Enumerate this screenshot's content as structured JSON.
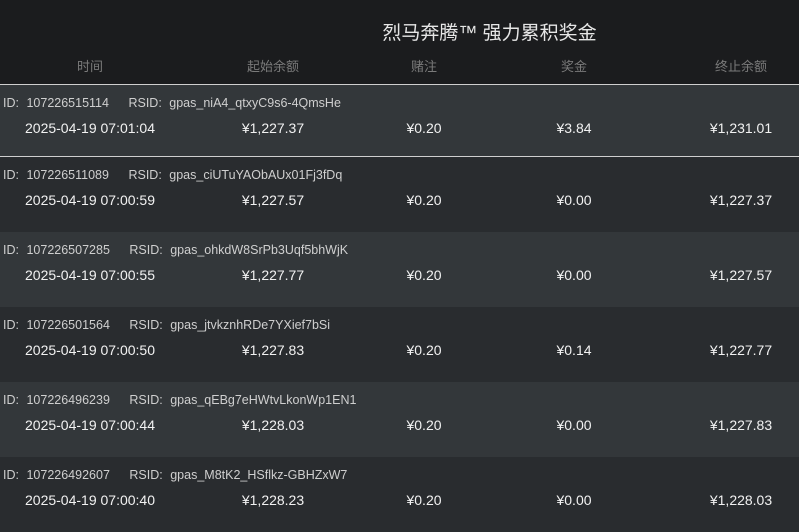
{
  "title": "烈马奔腾™ 强力累积奖金",
  "columns": [
    "时间",
    "起始余额",
    "赌注",
    "奖金",
    "终止余额"
  ],
  "labels": {
    "id": "ID:",
    "rsid": "RSID:"
  },
  "rows": [
    {
      "id": "107226515114",
      "rsid": "gpas_niA4_qtxyC9s6-4QmsHe",
      "time": "2025-04-19 07:01:04",
      "start": "¥1,227.37",
      "bet": "¥0.20",
      "prize": "¥3.84",
      "end": "¥1,231.01",
      "selected": true
    },
    {
      "id": "107226511089",
      "rsid": "gpas_ciUTuYAObAUx01Fj3fDq",
      "time": "2025-04-19 07:00:59",
      "start": "¥1,227.57",
      "bet": "¥0.20",
      "prize": "¥0.00",
      "end": "¥1,227.37"
    },
    {
      "id": "107226507285",
      "rsid": "gpas_ohkdW8SrPb3Uqf5bhWjK",
      "time": "2025-04-19 07:00:55",
      "start": "¥1,227.77",
      "bet": "¥0.20",
      "prize": "¥0.00",
      "end": "¥1,227.57"
    },
    {
      "id": "107226501564",
      "rsid": "gpas_jtvkznhRDe7YXief7bSi",
      "time": "2025-04-19 07:00:50",
      "start": "¥1,227.83",
      "bet": "¥0.20",
      "prize": "¥0.14",
      "end": "¥1,227.77"
    },
    {
      "id": "107226496239",
      "rsid": "gpas_qEBg7eHWtvLkonWp1EN1",
      "time": "2025-04-19 07:00:44",
      "start": "¥1,228.03",
      "bet": "¥0.20",
      "prize": "¥0.00",
      "end": "¥1,227.83"
    },
    {
      "id": "107226492607",
      "rsid": "gpas_M8tK2_HSflkz-GBHZxW7",
      "time": "2025-04-19 07:00:40",
      "start": "¥1,228.23",
      "bet": "¥0.20",
      "prize": "¥0.00",
      "end": "¥1,228.03"
    }
  ]
}
